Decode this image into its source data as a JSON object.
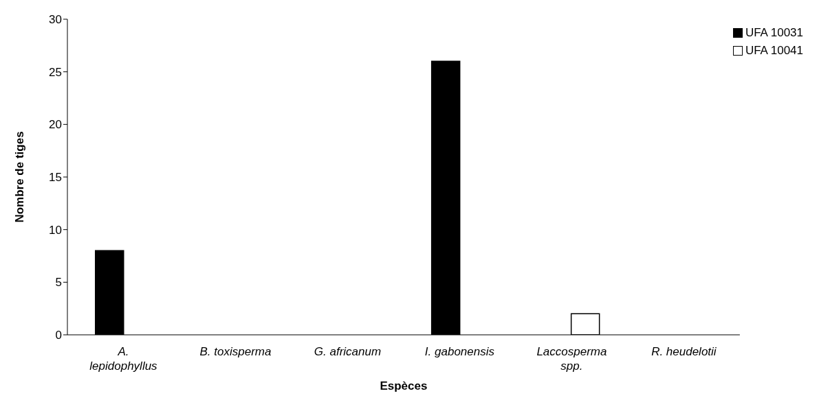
{
  "chart_data": {
    "type": "bar",
    "xlabel": "Espèces",
    "ylabel": "Nombre de tiges",
    "categories": [
      "A. lepidophyllus",
      "B. toxisperma",
      "G. africanum",
      "I. gabonensis",
      "Laccosperma spp.",
      "R. heudelotii"
    ],
    "series": [
      {
        "name": "UFA 10031",
        "color": "#000000",
        "values": [
          8,
          0,
          0,
          26,
          0,
          0
        ]
      },
      {
        "name": "UFA 10041",
        "color": "#ffffff",
        "values": [
          0,
          0,
          0,
          0,
          2,
          0
        ]
      }
    ],
    "ylim": [
      0,
      30
    ],
    "yticks": [
      0,
      5,
      10,
      15,
      20,
      25,
      30
    ],
    "grid": false,
    "legend": "top right"
  }
}
